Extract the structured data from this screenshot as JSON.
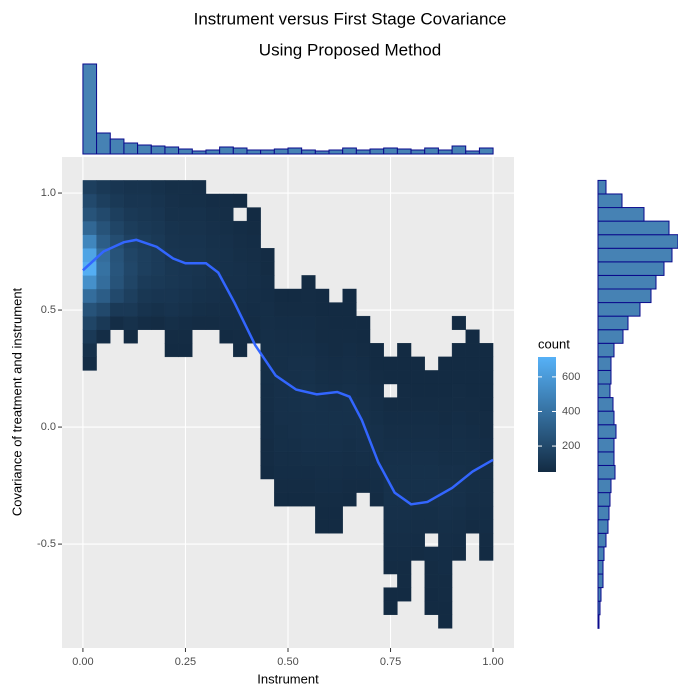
{
  "chart_data": {
    "type": "heatmap",
    "title": [
      "Instrument versus First Stage Covariance",
      "Using Proposed Method"
    ],
    "x_label": "Instrument",
    "y_label": "Covariance of treatment and instrument",
    "xlim": [
      -0.051,
      1.051
    ],
    "ylim": [
      -0.944,
      1.154
    ],
    "xticks": [
      {
        "value": 0,
        "label": "0.00"
      },
      0.25,
      {
        "value": 0.5,
        "label": "0.50"
      },
      0.75,
      {
        "value": 1,
        "label": "1.00"
      }
    ],
    "yticks": [
      -0.5,
      {
        "value": 0,
        "label": "0.0"
      },
      0.5,
      {
        "value": 1,
        "label": "1.0"
      }
    ],
    "grid": true,
    "xbins": [
      0,
      0.0333,
      0.0667,
      0.1,
      0.1333,
      0.1667,
      0.2,
      0.2333,
      0.2667,
      0.3,
      0.3333,
      0.3667,
      0.4,
      0.4333,
      0.4667,
      0.5,
      0.5333,
      0.5667,
      0.6,
      0.6333,
      0.6667,
      0.7,
      0.7333,
      0.7667,
      0.8,
      0.8333,
      0.8667,
      0.9,
      0.9333,
      0.9667,
      1
    ],
    "ybins": [
      -0.86,
      -0.802,
      -0.744,
      -0.686,
      -0.628,
      -0.57,
      -0.512,
      -0.454,
      -0.396,
      -0.338,
      -0.28,
      -0.222,
      -0.164,
      -0.106,
      -0.048,
      0.01,
      0.068,
      0.126,
      0.184,
      0.242,
      0.3,
      0.358,
      0.416,
      0.474,
      0.532,
      0.59,
      0.648,
      0.706,
      0.764,
      0.822,
      0.88,
      0.938,
      0.996,
      1.054
    ],
    "columns": [
      {
        "y0": 0.242,
        "counts": [
          60,
          80,
          120,
          180,
          250,
          380,
          550,
          700,
          650,
          500,
          350,
          250,
          200,
          150
        ]
      },
      {
        "y0": 0.358,
        "counts": [
          60,
          120,
          200,
          300,
          380,
          400,
          380,
          300,
          250,
          200,
          150,
          120
        ]
      },
      {
        "y0": 0.416,
        "counts": [
          60,
          120,
          200,
          250,
          260,
          250,
          220,
          180,
          150,
          120,
          100
        ]
      },
      {
        "y0": 0.358,
        "counts": [
          50,
          80,
          120,
          150,
          180,
          190,
          180,
          160,
          140,
          120,
          100,
          90
        ]
      },
      {
        "y0": 0.416,
        "counts": [
          60,
          90,
          110,
          130,
          150,
          150,
          140,
          120,
          110,
          100,
          90
        ]
      },
      {
        "y0": 0.416,
        "counts": [
          55,
          80,
          100,
          120,
          130,
          130,
          120,
          110,
          100,
          90,
          80
        ]
      },
      {
        "y0": 0.3,
        "counts": [
          50,
          55,
          70,
          90,
          100,
          110,
          110,
          100,
          95,
          90,
          80,
          75,
          70
        ]
      },
      {
        "y0": 0.3,
        "counts": [
          50,
          55,
          60,
          80,
          90,
          100,
          100,
          95,
          90,
          85,
          80,
          70,
          70
        ]
      },
      {
        "y0": 0.416,
        "counts": [
          55,
          70,
          80,
          90,
          95,
          95,
          90,
          85,
          80,
          70,
          65
        ]
      },
      {
        "y0": 0.416,
        "counts": [
          55,
          65,
          75,
          80,
          85,
          85,
          80,
          75,
          70,
          60
        ]
      },
      {
        "y0": 0.358,
        "counts": [
          50,
          60,
          65,
          70,
          75,
          80,
          80,
          75,
          70,
          65,
          60
        ]
      },
      {
        "y0": 0.3,
        "counts": [
          50,
          55,
          60,
          65,
          70,
          75,
          75,
          70,
          65,
          60,
          null,
          55
        ]
      },
      {
        "y0": 0.358,
        "counts": [
          50,
          55,
          60,
          65,
          70,
          70,
          65,
          60,
          55,
          50
        ]
      },
      {
        "y0": -0.222,
        "counts": [
          50,
          55,
          55,
          60,
          60,
          65,
          65,
          70,
          70,
          70,
          70,
          65,
          65,
          60,
          60,
          55,
          55
        ]
      },
      {
        "y0": -0.338,
        "counts": [
          50,
          55,
          60,
          65,
          70,
          70,
          75,
          75,
          75,
          75,
          70,
          70,
          65,
          60,
          55,
          50
        ]
      },
      {
        "y0": -0.338,
        "counts": [
          50,
          55,
          60,
          65,
          70,
          75,
          75,
          80,
          80,
          75,
          75,
          70,
          65,
          60,
          55,
          50
        ]
      },
      {
        "y0": -0.338,
        "counts": [
          50,
          55,
          60,
          70,
          75,
          80,
          80,
          85,
          85,
          80,
          75,
          70,
          65,
          60,
          55,
          55,
          50
        ]
      },
      {
        "y0": -0.454,
        "counts": [
          50,
          50,
          55,
          60,
          65,
          70,
          75,
          80,
          80,
          80,
          75,
          70,
          65,
          60,
          55,
          55,
          50,
          50
        ]
      },
      {
        "y0": -0.454,
        "counts": [
          50,
          50,
          55,
          60,
          65,
          70,
          75,
          80,
          80,
          75,
          70,
          65,
          60,
          55,
          55,
          50,
          50
        ]
      },
      {
        "y0": -0.338,
        "counts": [
          50,
          55,
          60,
          65,
          70,
          75,
          80,
          80,
          75,
          70,
          65,
          60,
          55,
          50,
          50,
          50
        ]
      },
      {
        "y0": -0.28,
        "counts": [
          55,
          60,
          70,
          75,
          80,
          80,
          75,
          70,
          65,
          60,
          55,
          50,
          50
        ]
      },
      {
        "y0": -0.338,
        "counts": [
          55,
          60,
          65,
          70,
          75,
          75,
          70,
          65,
          60,
          55,
          50,
          50
        ]
      },
      {
        "y0": -0.802,
        "counts": [
          50,
          50,
          null,
          55,
          60,
          65,
          70,
          75,
          80,
          80,
          80,
          75,
          70,
          65,
          60,
          55,
          null,
          50,
          50
        ]
      },
      {
        "y0": -0.744,
        "counts": [
          50,
          55,
          55,
          60,
          65,
          70,
          75,
          80,
          80,
          80,
          75,
          70,
          65,
          60,
          55,
          55,
          50,
          50,
          50
        ]
      },
      {
        "y0": -0.57,
        "counts": [
          55,
          60,
          65,
          70,
          75,
          80,
          80,
          75,
          70,
          65,
          60,
          55,
          50,
          50,
          50
        ]
      },
      {
        "y0": -0.802,
        "counts": [
          50,
          50,
          55,
          55,
          60,
          null,
          65,
          70,
          75,
          80,
          80,
          75,
          70,
          65,
          60,
          55,
          50,
          50
        ]
      },
      {
        "y0": -0.86,
        "counts": [
          50,
          50,
          55,
          55,
          60,
          60,
          65,
          70,
          75,
          80,
          80,
          75,
          70,
          65,
          60,
          55,
          55,
          50,
          50,
          50
        ]
      },
      {
        "y0": -0.57,
        "counts": [
          55,
          60,
          65,
          70,
          75,
          75,
          75,
          70,
          70,
          65,
          60,
          55,
          55,
          50,
          50,
          50,
          null,
          50
        ]
      },
      {
        "y0": -0.454,
        "counts": [
          55,
          60,
          65,
          70,
          70,
          70,
          65,
          60,
          55,
          55,
          50,
          50,
          50,
          50,
          50
        ]
      },
      {
        "y0": -0.57,
        "counts": [
          50,
          55,
          60,
          60,
          65,
          65,
          65,
          60,
          60,
          55,
          55,
          50,
          50,
          50,
          50,
          50
        ]
      }
    ],
    "fill_title": "count",
    "fill_lim": [
      50,
      715
    ],
    "fill_ticks": [
      200,
      400,
      600
    ],
    "low_color": "#132B43",
    "high_color": "#56B1F7",
    "smooth": {
      "color": "#3366FF",
      "x": [
        0,
        0.05,
        0.1,
        0.13,
        0.18,
        0.22,
        0.25,
        0.3,
        0.33,
        0.37,
        0.42,
        0.47,
        0.52,
        0.57,
        0.62,
        0.65,
        0.68,
        0.72,
        0.76,
        0.8,
        0.84,
        0.9,
        0.95,
        1
      ],
      "y": [
        0.67,
        0.75,
        0.79,
        0.8,
        0.77,
        0.72,
        0.7,
        0.7,
        0.66,
        0.53,
        0.35,
        0.22,
        0.16,
        0.14,
        0.15,
        0.13,
        0.03,
        -0.15,
        -0.28,
        -0.33,
        -0.32,
        -0.26,
        -0.19,
        -0.14
      ]
    },
    "hist_fill": "#4682B4",
    "hist_stroke": "#0A0A8C",
    "marginal_x": {
      "values": [
        90,
        21,
        15,
        11,
        9,
        8,
        7,
        5,
        3,
        4,
        7,
        6,
        4,
        4,
        5,
        6,
        4,
        3,
        4,
        6,
        4,
        5,
        6,
        5,
        4,
        6,
        4,
        8,
        3,
        6
      ]
    },
    "marginal_y": {
      "values": [
        1,
        2,
        3,
        5,
        5,
        6,
        8,
        10,
        11,
        12,
        13,
        17,
        16,
        16,
        18,
        16,
        15,
        12,
        13,
        13,
        16,
        25,
        30,
        42,
        53,
        58,
        66,
        74,
        80,
        71,
        46,
        24,
        8
      ]
    }
  }
}
